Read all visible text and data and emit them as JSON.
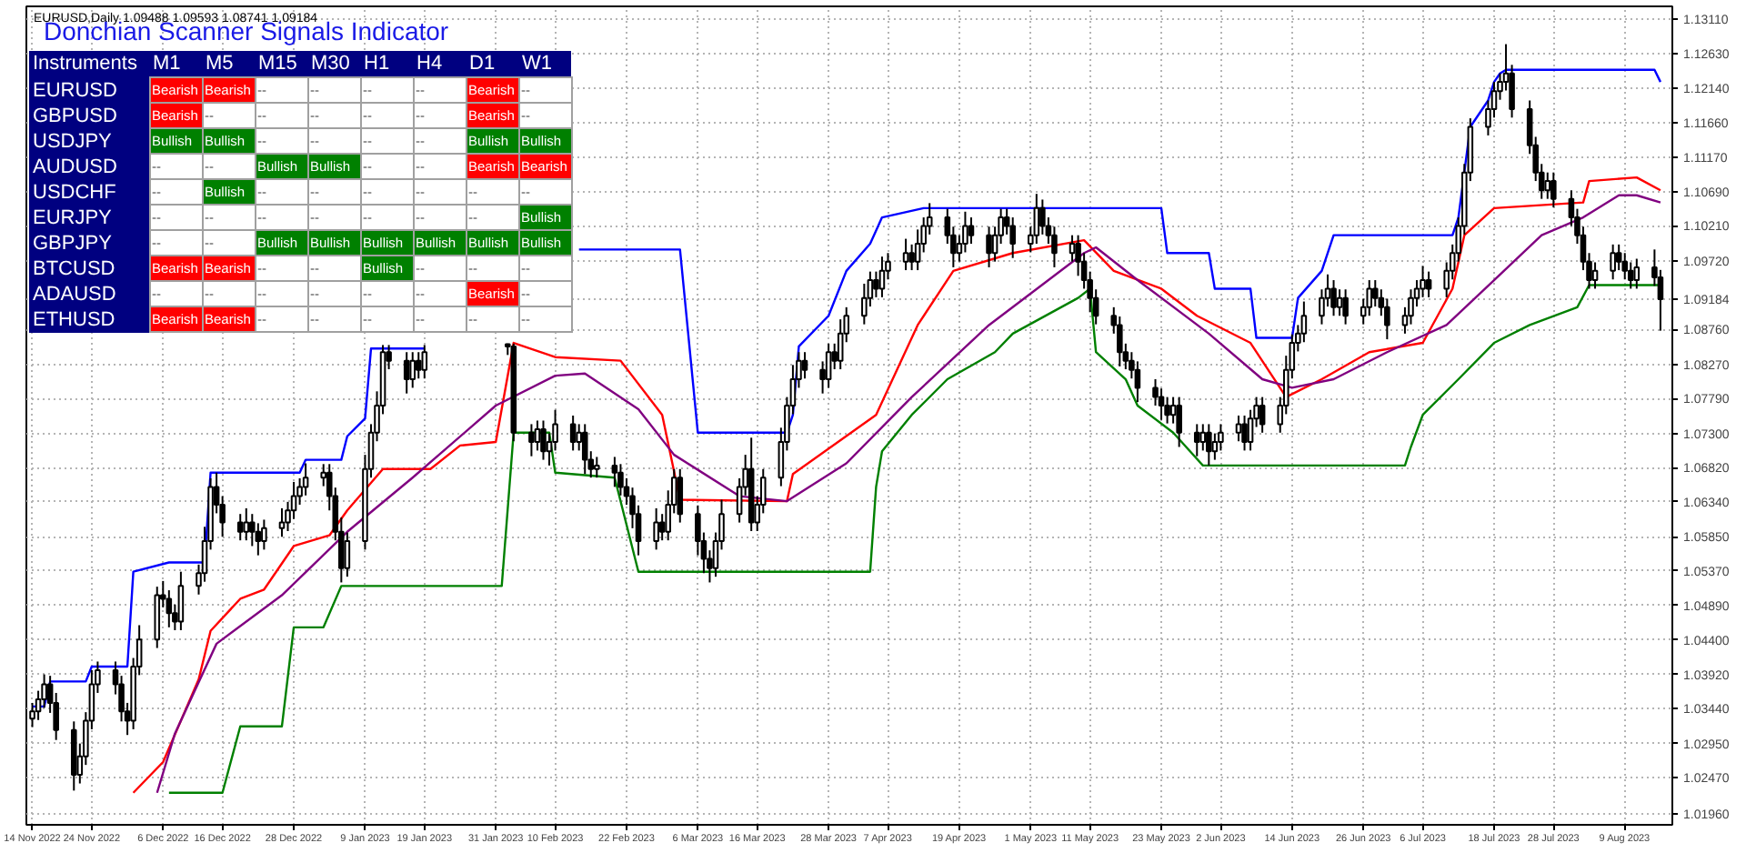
{
  "chart_data": [
    {
      "type": "candlestick",
      "annotations": [
        "EURUSD,Daily 1.09488 1.09593 1.08741 1.09184"
      ],
      "color": "#000000",
      "grid": true,
      "xlim": [
        "2022-11-13",
        "2023-08-17"
      ],
      "x": [
        "2022-11-14",
        "2022-11-15",
        "2022-11-16",
        "2022-11-17",
        "2022-11-18",
        "2022-11-21",
        "2022-11-22",
        "2022-11-23",
        "2022-11-24",
        "2022-11-25",
        "2022-11-28",
        "2022-11-29",
        "2022-11-30",
        "2022-12-01",
        "2022-12-02",
        "2022-12-05",
        "2022-12-06",
        "2022-12-07",
        "2022-12-08",
        "2022-12-09",
        "2022-12-12",
        "2022-12-13",
        "2022-12-14",
        "2022-12-15",
        "2022-12-16",
        "2022-12-19",
        "2022-12-20",
        "2022-12-21",
        "2022-12-22",
        "2022-12-23",
        "2022-12-26",
        "2022-12-27",
        "2022-12-28",
        "2022-12-29",
        "2022-12-30",
        "2023-01-02",
        "2023-01-03",
        "2023-01-04",
        "2023-01-05",
        "2023-01-06",
        "2023-01-09",
        "2023-01-10",
        "2023-01-11",
        "2023-01-12",
        "2023-01-13",
        "2023-01-16",
        "2023-01-17",
        "2023-01-18",
        "2023-01-19",
        "2023-02-02",
        "2023-02-03",
        "2023-02-06",
        "2023-02-07",
        "2023-02-08",
        "2023-02-09",
        "2023-02-10",
        "2023-02-13",
        "2023-02-14",
        "2023-02-15",
        "2023-02-16",
        "2023-02-17",
        "2023-02-20",
        "2023-02-21",
        "2023-02-22",
        "2023-02-23",
        "2023-02-24",
        "2023-02-27",
        "2023-02-28",
        "2023-03-01",
        "2023-03-02",
        "2023-03-03",
        "2023-03-06",
        "2023-03-07",
        "2023-03-08",
        "2023-03-09",
        "2023-03-10",
        "2023-03-13",
        "2023-03-14",
        "2023-03-15",
        "2023-03-16",
        "2023-03-17",
        "2023-03-20",
        "2023-03-21",
        "2023-03-22",
        "2023-03-23",
        "2023-03-24",
        "2023-03-27",
        "2023-03-28",
        "2023-03-29",
        "2023-03-30",
        "2023-03-31",
        "2023-04-03",
        "2023-04-04",
        "2023-04-05",
        "2023-04-06",
        "2023-04-07",
        "2023-04-10",
        "2023-04-11",
        "2023-04-12",
        "2023-04-13",
        "2023-04-14",
        "2023-04-17",
        "2023-04-18",
        "2023-04-19",
        "2023-04-20",
        "2023-04-21",
        "2023-04-24",
        "2023-04-25",
        "2023-04-26",
        "2023-04-27",
        "2023-04-28",
        "2023-05-01",
        "2023-05-02",
        "2023-05-03",
        "2023-05-04",
        "2023-05-05",
        "2023-05-08",
        "2023-05-09",
        "2023-05-10",
        "2023-05-11",
        "2023-05-12",
        "2023-05-15",
        "2023-05-16",
        "2023-05-17",
        "2023-05-18",
        "2023-05-19",
        "2023-05-22",
        "2023-05-23",
        "2023-05-24",
        "2023-05-25",
        "2023-05-26",
        "2023-05-29",
        "2023-05-30",
        "2023-05-31",
        "2023-06-01",
        "2023-06-02",
        "2023-06-05",
        "2023-06-06",
        "2023-06-07",
        "2023-06-08",
        "2023-06-09",
        "2023-06-12",
        "2023-06-13",
        "2023-06-14",
        "2023-06-15",
        "2023-06-16",
        "2023-06-19",
        "2023-06-20",
        "2023-06-21",
        "2023-06-22",
        "2023-06-23",
        "2023-06-26",
        "2023-06-27",
        "2023-06-28",
        "2023-06-29",
        "2023-06-30",
        "2023-07-03",
        "2023-07-04",
        "2023-07-05",
        "2023-07-06",
        "2023-07-07",
        "2023-07-10",
        "2023-07-11",
        "2023-07-12",
        "2023-07-13",
        "2023-07-14",
        "2023-07-17",
        "2023-07-18",
        "2023-07-19",
        "2023-07-20",
        "2023-07-21",
        "2023-07-24",
        "2023-07-25",
        "2023-07-26",
        "2023-07-27",
        "2023-07-28",
        "2023-07-31",
        "2023-08-01",
        "2023-08-02",
        "2023-08-03",
        "2023-08-04",
        "2023-08-07",
        "2023-08-08",
        "2023-08-09",
        "2023-08-10",
        "2023-08-11",
        "2023-08-14",
        "2023-08-15"
      ],
      "ohlc": [
        [
          1.033,
          1.0352,
          1.0318,
          1.034
        ],
        [
          1.034,
          1.0369,
          1.0328,
          1.0357
        ],
        [
          1.0357,
          1.0392,
          1.0345,
          1.0378
        ],
        [
          1.0378,
          1.039,
          1.0338,
          1.0352
        ],
        [
          1.0352,
          1.0366,
          1.03,
          1.0314
        ],
        [
          1.0314,
          1.0326,
          1.0229,
          1.0251
        ],
        [
          1.0251,
          1.0295,
          1.0239,
          1.0277
        ],
        [
          1.0277,
          1.0339,
          1.0265,
          1.0327
        ],
        [
          1.0327,
          1.0398,
          1.0315,
          1.0378
        ],
        [
          1.0378,
          1.041,
          1.0366,
          1.0398
        ],
        [
          1.0398,
          1.041,
          1.0364,
          1.0378
        ],
        [
          1.0378,
          1.039,
          1.0326,
          1.034
        ],
        [
          1.034,
          1.0352,
          1.0307,
          1.0327
        ],
        [
          1.0327,
          1.0415,
          1.0315,
          1.0403
        ],
        [
          1.0403,
          1.0461,
          1.0391,
          1.0441
        ],
        [
          1.0441,
          1.0515,
          1.0429,
          1.0503
        ],
        [
          1.0503,
          1.0523,
          1.0486,
          1.0498
        ],
        [
          1.0498,
          1.051,
          1.0458,
          1.0478
        ],
        [
          1.0478,
          1.049,
          1.0454,
          1.0466
        ],
        [
          1.0466,
          1.0536,
          1.0454,
          1.0516
        ],
        [
          1.0516,
          1.0546,
          1.0504,
          1.0534
        ],
        [
          1.0534,
          1.0599,
          1.0522,
          1.0579
        ],
        [
          1.0579,
          1.0667,
          1.0567,
          1.0655
        ],
        [
          1.0655,
          1.0675,
          1.0618,
          1.063
        ],
        [
          1.063,
          1.0642,
          1.0585,
          1.0605
        ],
        [
          1.0605,
          1.0617,
          1.058,
          1.0592
        ],
        [
          1.0592,
          1.0625,
          1.058,
          1.0605
        ],
        [
          1.0605,
          1.0617,
          1.0572,
          1.0592
        ],
        [
          1.0592,
          1.0604,
          1.0559,
          1.0579
        ],
        [
          1.0579,
          1.0609,
          1.0567,
          1.0597
        ],
        [
          1.0597,
          1.0625,
          1.0585,
          1.0605
        ],
        [
          1.0605,
          1.0634,
          1.0593,
          1.0622
        ],
        [
          1.0622,
          1.0662,
          1.061,
          1.0642
        ],
        [
          1.0642,
          1.0667,
          1.063,
          1.0655
        ],
        [
          1.0655,
          1.0688,
          1.0643,
          1.0668
        ],
        [
          1.0668,
          1.0687,
          1.0656,
          1.0675
        ],
        [
          1.0675,
          1.0687,
          1.0622,
          1.0642
        ],
        [
          1.0642,
          1.0654,
          1.058,
          1.0592
        ],
        [
          1.0592,
          1.0612,
          1.0521,
          1.0541
        ],
        [
          1.0541,
          1.0591,
          1.0529,
          1.0579
        ],
        [
          1.0579,
          1.07,
          1.0567,
          1.068
        ],
        [
          1.068,
          1.0743,
          1.0668,
          1.0731
        ],
        [
          1.0731,
          1.0789,
          1.0719,
          1.0769
        ],
        [
          1.0769,
          1.0854,
          1.0757,
          1.0844
        ],
        [
          1.0844,
          1.0854,
          1.082,
          1.0832
        ],
        [
          1.0832,
          1.0844,
          1.0786,
          1.0806
        ],
        [
          1.0806,
          1.0844,
          1.0794,
          1.0832
        ],
        [
          1.0832,
          1.0844,
          1.0807,
          1.0819
        ],
        [
          1.0819,
          1.0854,
          1.0807,
          1.0844
        ],
        [
          1.0855,
          1.0856,
          1.084,
          1.0852
        ],
        [
          1.0852,
          1.0856,
          1.0719,
          1.0731
        ],
        [
          1.0731,
          1.0743,
          1.0698,
          1.0718
        ],
        [
          1.0718,
          1.0748,
          1.0706,
          1.0736
        ],
        [
          1.0736,
          1.0748,
          1.0693,
          1.0705
        ],
        [
          1.0705,
          1.073,
          1.0685,
          1.0718
        ],
        [
          1.0718,
          1.0763,
          1.0706,
          1.0743
        ],
        [
          1.0743,
          1.0755,
          1.0706,
          1.0718
        ],
        [
          1.0718,
          1.0743,
          1.0706,
          1.0731
        ],
        [
          1.0731,
          1.0743,
          1.0673,
          1.0693
        ],
        [
          1.0693,
          1.0705,
          1.0668,
          1.068
        ],
        [
          1.068,
          1.0697,
          1.0668,
          1.0685
        ],
        [
          1.0685,
          1.0697,
          1.0655,
          1.0675
        ],
        [
          1.0675,
          1.0687,
          1.0643,
          1.0655
        ],
        [
          1.0655,
          1.0667,
          1.063,
          1.0642
        ],
        [
          1.0642,
          1.0654,
          1.0597,
          1.0617
        ],
        [
          1.0617,
          1.0629,
          1.0559,
          1.0579
        ],
        [
          1.0579,
          1.0625,
          1.0567,
          1.0605
        ],
        [
          1.0605,
          1.0617,
          1.058,
          1.0592
        ],
        [
          1.0592,
          1.065,
          1.058,
          1.063
        ],
        [
          1.063,
          1.068,
          1.0618,
          1.0668
        ],
        [
          1.0668,
          1.068,
          1.0605,
          1.0617
        ],
        [
          1.0617,
          1.0629,
          1.0559,
          1.0579
        ],
        [
          1.0579,
          1.0591,
          1.0534,
          1.0554
        ],
        [
          1.0554,
          1.0566,
          1.0521,
          1.0541
        ],
        [
          1.0541,
          1.0591,
          1.0529,
          1.0579
        ],
        [
          1.0579,
          1.0637,
          1.0567,
          1.0617
        ],
        [
          1.0617,
          1.0667,
          1.0605,
          1.0655
        ],
        [
          1.0655,
          1.07,
          1.0643,
          1.068
        ],
        [
          1.068,
          1.0724,
          1.0593,
          1.0605
        ],
        [
          1.0605,
          1.0642,
          1.0593,
          1.063
        ],
        [
          1.063,
          1.068,
          1.0618,
          1.0668
        ],
        [
          1.0668,
          1.0738,
          1.0656,
          1.0718
        ],
        [
          1.0718,
          1.0781,
          1.0706,
          1.0769
        ],
        [
          1.0769,
          1.0826,
          1.0757,
          1.0806
        ],
        [
          1.0806,
          1.0844,
          1.0794,
          1.0832
        ],
        [
          1.0832,
          1.0844,
          1.0807,
          1.0819
        ],
        [
          1.0819,
          1.0831,
          1.0786,
          1.0806
        ],
        [
          1.0806,
          1.0856,
          1.0794,
          1.0844
        ],
        [
          1.0844,
          1.0856,
          1.082,
          1.0832
        ],
        [
          1.0832,
          1.089,
          1.082,
          1.087
        ],
        [
          1.087,
          1.0907,
          1.0858,
          1.0895
        ],
        [
          1.0895,
          1.094,
          1.0883,
          1.092
        ],
        [
          1.092,
          1.0957,
          1.0908,
          1.0945
        ],
        [
          1.0945,
          1.0957,
          1.0921,
          1.0933
        ],
        [
          1.0933,
          1.0978,
          1.0921,
          1.0958
        ],
        [
          1.0958,
          1.0983,
          1.0946,
          1.0971
        ],
        [
          1.0971,
          1.1003,
          1.0959,
          1.0983
        ],
        [
          1.0983,
          1.0995,
          1.0959,
          1.0971
        ],
        [
          1.0971,
          1.1016,
          1.0959,
          1.0996
        ],
        [
          1.0996,
          1.1033,
          1.0984,
          1.1021
        ],
        [
          1.1021,
          1.1053,
          1.1009,
          1.1033
        ],
        [
          1.1033,
          1.1045,
          1.0996,
          1.1008
        ],
        [
          1.1008,
          1.102,
          1.0963,
          1.0983
        ],
        [
          1.0983,
          1.1008,
          1.0971,
          1.0996
        ],
        [
          1.0996,
          1.1041,
          1.0984,
          1.1021
        ],
        [
          1.1021,
          1.1033,
          1.0996,
          1.1008
        ],
        [
          1.1008,
          1.102,
          1.0963,
          1.0983
        ],
        [
          1.0983,
          1.102,
          1.0971,
          1.1008
        ],
        [
          1.1008,
          1.1045,
          1.0996,
          1.1033
        ],
        [
          1.1033,
          1.1045,
          1.1009,
          1.1021
        ],
        [
          1.1021,
          1.1033,
          1.0976,
          1.0996
        ],
        [
          1.0996,
          1.102,
          1.0984,
          1.1008
        ],
        [
          1.1008,
          1.1066,
          1.0996,
          1.1046
        ],
        [
          1.1046,
          1.1058,
          1.1009,
          1.1021
        ],
        [
          1.1021,
          1.1033,
          1.0996,
          1.1008
        ],
        [
          1.1008,
          1.102,
          1.0963,
          1.0983
        ],
        [
          1.0983,
          1.1008,
          1.0971,
          1.0996
        ],
        [
          1.0996,
          1.1008,
          1.0951,
          1.0971
        ],
        [
          1.0971,
          1.0983,
          1.0933,
          1.0945
        ],
        [
          1.0945,
          1.0957,
          1.09,
          1.092
        ],
        [
          1.092,
          1.0932,
          1.0883,
          1.0895
        ],
        [
          1.0895,
          1.0907,
          1.087,
          1.0882
        ],
        [
          1.0882,
          1.0894,
          1.0824,
          1.0844
        ],
        [
          1.0844,
          1.0856,
          1.082,
          1.0832
        ],
        [
          1.0832,
          1.0844,
          1.0807,
          1.0819
        ],
        [
          1.0819,
          1.0831,
          1.0774,
          1.0794
        ],
        [
          1.0794,
          1.0806,
          1.0769,
          1.0781
        ],
        [
          1.0781,
          1.0793,
          1.0749,
          1.0769
        ],
        [
          1.0769,
          1.0781,
          1.0744,
          1.0756
        ],
        [
          1.0756,
          1.0781,
          1.0744,
          1.0769
        ],
        [
          1.0769,
          1.0781,
          1.0711,
          1.0731
        ],
        [
          1.0731,
          1.0743,
          1.0698,
          1.0718
        ],
        [
          1.0718,
          1.0743,
          1.0706,
          1.0731
        ],
        [
          1.0731,
          1.0743,
          1.0685,
          1.0705
        ],
        [
          1.0705,
          1.073,
          1.0693,
          1.0718
        ],
        [
          1.0718,
          1.0743,
          1.0706,
          1.0731
        ],
        [
          1.0731,
          1.0755,
          1.0719,
          1.0743
        ],
        [
          1.0743,
          1.0755,
          1.0706,
          1.0718
        ],
        [
          1.0718,
          1.0763,
          1.0706,
          1.0751
        ],
        [
          1.0751,
          1.0781,
          1.0739,
          1.0769
        ],
        [
          1.0769,
          1.0781,
          1.0731,
          1.0743
        ],
        [
          1.0743,
          1.0781,
          1.0731,
          1.0769
        ],
        [
          1.0769,
          1.0839,
          1.0757,
          1.0819
        ],
        [
          1.0819,
          1.0869,
          1.0807,
          1.0857
        ],
        [
          1.0857,
          1.0882,
          1.0845,
          1.087
        ],
        [
          1.087,
          1.0915,
          1.0858,
          1.0895
        ],
        [
          1.0895,
          1.0932,
          1.0883,
          1.092
        ],
        [
          1.092,
          1.0953,
          1.0908,
          1.0933
        ],
        [
          1.0933,
          1.0945,
          1.0895,
          1.0907
        ],
        [
          1.0907,
          1.0932,
          1.0895,
          1.092
        ],
        [
          1.092,
          1.0932,
          1.0883,
          1.0895
        ],
        [
          1.0895,
          1.0919,
          1.0883,
          1.0907
        ],
        [
          1.0907,
          1.0945,
          1.0895,
          1.0933
        ],
        [
          1.0933,
          1.0945,
          1.0908,
          1.092
        ],
        [
          1.092,
          1.0932,
          1.0895,
          1.0907
        ],
        [
          1.0907,
          1.0919,
          1.0862,
          1.0882
        ],
        [
          1.0882,
          1.0907,
          1.087,
          1.0895
        ],
        [
          1.0895,
          1.0932,
          1.0883,
          1.092
        ],
        [
          1.092,
          1.0945,
          1.0908,
          1.0933
        ],
        [
          1.0933,
          1.0965,
          1.0921,
          1.0945
        ],
        [
          1.0945,
          1.0957,
          1.0921,
          1.0933
        ],
        [
          1.0933,
          1.097,
          1.0921,
          1.0958
        ],
        [
          1.0958,
          1.0995,
          1.0946,
          1.0983
        ],
        [
          1.0983,
          1.1033,
          1.0971,
          1.1021
        ],
        [
          1.1021,
          1.1108,
          1.1009,
          1.1096
        ],
        [
          1.1096,
          1.1172,
          1.1084,
          1.116
        ],
        [
          1.116,
          1.1197,
          1.1148,
          1.1185
        ],
        [
          1.1185,
          1.1223,
          1.1173,
          1.121
        ],
        [
          1.121,
          1.1235,
          1.1198,
          1.1223
        ],
        [
          1.1223,
          1.1276,
          1.1211,
          1.1235
        ],
        [
          1.1235,
          1.1247,
          1.1173,
          1.1185
        ],
        [
          1.1185,
          1.1197,
          1.1122,
          1.1134
        ],
        [
          1.1134,
          1.1146,
          1.1084,
          1.1096
        ],
        [
          1.1096,
          1.1108,
          1.1059,
          1.1071
        ],
        [
          1.1071,
          1.1096,
          1.1059,
          1.1084
        ],
        [
          1.1084,
          1.1096,
          1.1047,
          1.1059
        ],
        [
          1.1059,
          1.1071,
          1.1021,
          1.1033
        ],
        [
          1.1033,
          1.1045,
          1.0996,
          1.1008
        ],
        [
          1.1008,
          1.102,
          1.0959,
          1.0971
        ],
        [
          1.0971,
          1.0983,
          1.0933,
          1.0945
        ],
        [
          1.0945,
          1.097,
          1.0933,
          1.0958
        ],
        [
          1.0958,
          1.0995,
          1.0946,
          1.0983
        ],
        [
          1.0983,
          1.0995,
          1.0959,
          1.0971
        ],
        [
          1.0971,
          1.0983,
          1.0946,
          1.0958
        ],
        [
          1.0958,
          1.097,
          1.0933,
          1.0945
        ],
        [
          1.0945,
          1.0975,
          1.0933,
          1.0963
        ],
        [
          1.0963,
          1.0988,
          1.0937,
          1.0949
        ],
        [
          1.09488,
          1.09593,
          1.08741,
          1.09184
        ]
      ],
      "series": [
        {
          "type": "line",
          "color": "#0000ff",
          "x": [
            "2022-11-14",
            "2022-11-16",
            "2022-11-17",
            "2022-11-23",
            "2022-11-24",
            "2022-11-30",
            "2022-12-01",
            "2022-12-07",
            "2022-12-13",
            "2022-12-14",
            "2022-12-29",
            "2022-12-30",
            "2023-01-05",
            "2023-01-06",
            "2023-01-09",
            "2023-01-10",
            "2023-01-19",
            "2023-01-25",
            "2023-02-14",
            "2023-03-03",
            "2023-03-06",
            "2023-03-21",
            "2023-03-22",
            "2023-03-23",
            "2023-03-28",
            "2023-03-31",
            "2023-04-04",
            "2023-04-06",
            "2023-04-13",
            "2023-05-23",
            "2023-05-24",
            "2023-05-31",
            "2023-06-01",
            "2023-06-07",
            "2023-06-08",
            "2023-06-14",
            "2023-06-15",
            "2023-06-19",
            "2023-06-21",
            "2023-07-11",
            "2023-07-12",
            "2023-07-13",
            "2023-07-14",
            "2023-07-17",
            "2023-07-18",
            "2023-07-19",
            "2023-07-20",
            "2023-08-14",
            "2023-08-15"
          ],
          "values": [
            1.0347,
            1.0347,
            1.0382,
            1.0382,
            1.0403,
            1.0403,
            1.0536,
            1.0549,
            1.0549,
            1.0675,
            1.0675,
            1.0693,
            1.0693,
            1.0726,
            1.0751,
            1.0849,
            1.0849,
            null,
            1.0988,
            1.0988,
            1.0731,
            1.0731,
            1.0756,
            1.0852,
            1.0895,
            1.0958,
            1.0996,
            1.1033,
            1.1046,
            1.1046,
            1.0983,
            1.0983,
            1.0933,
            1.0933,
            1.0864,
            1.0864,
            1.092,
            1.0958,
            1.1008,
            1.1008,
            1.1033,
            1.1097,
            1.116,
            1.1197,
            1.1223,
            1.1235,
            1.124,
            1.124,
            1.1223
          ]
        },
        {
          "type": "line",
          "color": "#008000",
          "x": [
            "2022-12-07",
            "2022-12-16",
            "2022-12-19",
            "2022-12-26",
            "2022-12-28",
            "2023-01-02",
            "2023-01-05",
            "2023-02-01",
            "2023-02-03",
            "2023-02-09",
            "2023-02-10",
            "2023-02-20",
            "2023-02-24",
            "2023-04-04",
            "2023-04-05",
            "2023-04-06",
            "2023-04-11",
            "2023-04-17",
            "2023-04-25",
            "2023-04-28",
            "2023-05-09",
            "2023-05-11",
            "2023-05-12",
            "2023-05-17",
            "2023-05-19",
            "2023-05-25",
            "2023-05-30",
            "2023-07-03",
            "2023-07-04",
            "2023-07-06",
            "2023-07-12",
            "2023-07-18",
            "2023-07-24",
            "2023-08-01",
            "2023-08-03",
            "2023-08-15"
          ],
          "values": [
            1.0226,
            1.0226,
            1.0319,
            1.0319,
            1.0458,
            1.0458,
            1.0516,
            1.0516,
            1.0731,
            1.0731,
            1.0675,
            1.0668,
            1.0536,
            1.0536,
            1.0655,
            1.0705,
            1.0756,
            1.0806,
            1.0844,
            1.087,
            1.092,
            1.0933,
            1.0844,
            1.0806,
            1.0769,
            1.0731,
            1.0685,
            1.0685,
            1.0711,
            1.0756,
            1.0806,
            1.0857,
            1.0882,
            1.0907,
            1.0938,
            1.0938
          ]
        },
        {
          "type": "line",
          "color": "#ff0000",
          "x": [
            "2022-12-01",
            "2022-12-06",
            "2022-12-12",
            "2022-12-14",
            "2022-12-19",
            "2022-12-23",
            "2022-12-28",
            "2023-01-03",
            "2023-01-06",
            "2023-01-12",
            "2023-01-20",
            "2023-01-25",
            "2023-01-31",
            "2023-02-03",
            "2023-02-10",
            "2023-02-21",
            "2023-02-28",
            "2023-03-03",
            "2023-03-21",
            "2023-03-22",
            "2023-04-05",
            "2023-04-12",
            "2023-04-18",
            "2023-04-28",
            "2023-05-10",
            "2023-05-15",
            "2023-05-23",
            "2023-05-29",
            "2023-06-07",
            "2023-06-13",
            "2023-06-19",
            "2023-06-27",
            "2023-07-06",
            "2023-07-11",
            "2023-07-13",
            "2023-07-18",
            "2023-08-02",
            "2023-08-03",
            "2023-08-11",
            "2023-08-15"
          ],
          "values": [
            1.0226,
            1.0269,
            1.0385,
            1.0453,
            1.0498,
            1.0511,
            1.0572,
            1.0587,
            1.0622,
            1.068,
            1.068,
            1.0713,
            1.0718,
            1.0857,
            1.0837,
            1.0832,
            1.0756,
            1.0637,
            1.0635,
            1.0673,
            1.0756,
            1.0882,
            1.0958,
            1.0983,
            1.1001,
            1.0958,
            1.0933,
            1.0895,
            1.0857,
            1.0781,
            1.0806,
            1.0844,
            1.0857,
            1.0933,
            1.1008,
            1.1046,
            1.1054,
            1.1084,
            1.1089,
            1.1071
          ]
        },
        {
          "type": "line",
          "color": "#800080",
          "x": [
            "2022-12-05",
            "2022-12-08",
            "2022-12-15",
            "2022-12-26",
            "2023-01-06",
            "2023-01-17",
            "2023-01-31",
            "2023-02-10",
            "2023-02-15",
            "2023-02-24",
            "2023-03-02",
            "2023-03-13",
            "2023-03-21",
            "2023-03-31",
            "2023-04-11",
            "2023-04-24",
            "2023-05-04",
            "2023-05-10",
            "2023-05-12",
            "2023-05-19",
            "2023-05-31",
            "2023-06-09",
            "2023-06-14",
            "2023-06-21",
            "2023-06-30",
            "2023-07-10",
            "2023-07-18",
            "2023-07-26",
            "2023-08-02",
            "2023-08-08",
            "2023-08-11",
            "2023-08-15"
          ],
          "values": [
            1.0226,
            1.0309,
            1.0435,
            1.0503,
            1.0592,
            1.0668,
            1.0769,
            1.0811,
            1.0814,
            1.0764,
            1.07,
            1.0642,
            1.0635,
            1.0688,
            1.0781,
            1.0882,
            1.0945,
            1.0983,
            1.0991,
            1.0945,
            1.087,
            1.0806,
            1.0794,
            1.0806,
            1.0844,
            1.0882,
            1.0945,
            1.1008,
            1.1033,
            1.1064,
            1.1064,
            1.1054
          ]
        }
      ],
      "ylim": [
        1.0181,
        1.1329
      ],
      "yticks": [
        {
          "value": 1.1311,
          "label": "1.13110"
        },
        {
          "value": 1.1263,
          "label": "1.12630"
        },
        {
          "value": 1.1214,
          "label": "1.12140"
        },
        {
          "value": 1.1166,
          "label": "1.11660"
        },
        {
          "value": 1.1117,
          "label": "1.11170"
        },
        {
          "value": 1.1069,
          "label": "1.10690"
        },
        {
          "value": 1.1021,
          "label": "1.10210"
        },
        {
          "value": 1.0972,
          "label": "1.09720"
        },
        {
          "value": 1.09184,
          "label": "1.09184"
        },
        {
          "value": 1.0876,
          "label": "1.08760"
        },
        {
          "value": 1.0827,
          "label": "1.08270"
        },
        {
          "value": 1.0779,
          "label": "1.07790"
        },
        {
          "value": 1.073,
          "label": "1.07300"
        },
        {
          "value": 1.0682,
          "label": "1.06820"
        },
        {
          "value": 1.0634,
          "label": "1.06340"
        },
        {
          "value": 1.0585,
          "label": "1.05850"
        },
        {
          "value": 1.0537,
          "label": "1.05370"
        },
        {
          "value": 1.0489,
          "label": "1.04890"
        },
        {
          "value": 1.044,
          "label": "1.04400"
        },
        {
          "value": 1.0392,
          "label": "1.03920"
        },
        {
          "value": 1.0344,
          "label": "1.03440"
        },
        {
          "value": 1.0295,
          "label": "1.02950"
        },
        {
          "value": 1.0247,
          "label": "1.02470"
        },
        {
          "value": 1.0196,
          "label": "1.01960"
        }
      ],
      "xticks": [
        {
          "value": "2022-11-14",
          "label": "14 Nov 2022"
        },
        {
          "value": "2022-11-24",
          "label": "24 Nov 2022"
        },
        {
          "value": "2022-12-06",
          "label": "6 Dec 2022"
        },
        {
          "value": "2022-12-16",
          "label": "16 Dec 2022"
        },
        {
          "value": "2022-12-28",
          "label": "28 Dec 2022"
        },
        {
          "value": "2023-01-09",
          "label": "9 Jan 2023"
        },
        {
          "value": "2023-01-19",
          "label": "19 Jan 2023"
        },
        {
          "value": "2023-01-31",
          "label": "31 Jan 2023"
        },
        {
          "value": "2023-02-10",
          "label": "10 Feb 2023"
        },
        {
          "value": "2023-02-22",
          "label": "22 Feb 2023"
        },
        {
          "value": "2023-03-06",
          "label": "6 Mar 2023"
        },
        {
          "value": "2023-03-16",
          "label": "16 Mar 2023"
        },
        {
          "value": "2023-03-28",
          "label": "28 Mar 2023"
        },
        {
          "value": "2023-04-07",
          "label": "7 Apr 2023"
        },
        {
          "value": "2023-04-19",
          "label": "19 Apr 2023"
        },
        {
          "value": "2023-05-01",
          "label": "1 May 2023"
        },
        {
          "value": "2023-05-11",
          "label": "11 May 2023"
        },
        {
          "value": "2023-05-23",
          "label": "23 May 2023"
        },
        {
          "value": "2023-06-02",
          "label": "2 Jun 2023"
        },
        {
          "value": "2023-06-14",
          "label": "14 Jun 2023"
        },
        {
          "value": "2023-06-26",
          "label": "26 Jun 2023"
        },
        {
          "value": "2023-07-06",
          "label": "6 Jul 2023"
        },
        {
          "value": "2023-07-18",
          "label": "18 Jul 2023"
        },
        {
          "value": "2023-07-28",
          "label": "28 Jul 2023"
        },
        {
          "value": "2023-08-09",
          "label": "9 Aug 2023"
        }
      ]
    },
    {
      "type": "other",
      "title": "Donchian Scanner Signals Indicator",
      "ylabel": "Instruments",
      "categories": [
        "M1",
        "M5",
        "M15",
        "M30",
        "H1",
        "H4",
        "D1",
        "W1"
      ],
      "y_categories": [
        "EURUSD",
        "GBPUSD",
        "USDJPY",
        "AUDUSD",
        "USDCHF",
        "EURJPY",
        "GBPJPY",
        "BTCUSD",
        "ADAUSD",
        "ETHUSD"
      ],
      "colors": [
        [
          "#ff0000",
          "#ff0000",
          "#ffffff",
          "#ffffff",
          "#ffffff",
          "#ffffff",
          "#ff0000",
          "#ffffff"
        ],
        [
          "#ff0000",
          "#ffffff",
          "#ffffff",
          "#ffffff",
          "#ffffff",
          "#ffffff",
          "#ff0000",
          "#ffffff"
        ],
        [
          "#008000",
          "#008000",
          "#ffffff",
          "#ffffff",
          "#ffffff",
          "#ffffff",
          "#008000",
          "#008000"
        ],
        [
          "#ffffff",
          "#ffffff",
          "#008000",
          "#008000",
          "#ffffff",
          "#ffffff",
          "#ff0000",
          "#ff0000"
        ],
        [
          "#ffffff",
          "#008000",
          "#ffffff",
          "#ffffff",
          "#ffffff",
          "#ffffff",
          "#ffffff",
          "#ffffff"
        ],
        [
          "#ffffff",
          "#ffffff",
          "#ffffff",
          "#ffffff",
          "#ffffff",
          "#ffffff",
          "#ffffff",
          "#008000"
        ],
        [
          "#ffffff",
          "#ffffff",
          "#008000",
          "#008000",
          "#008000",
          "#008000",
          "#008000",
          "#008000"
        ],
        [
          "#ff0000",
          "#ff0000",
          "#ffffff",
          "#ffffff",
          "#008000",
          "#ffffff",
          "#ffffff",
          "#ffffff"
        ],
        [
          "#ffffff",
          "#ffffff",
          "#ffffff",
          "#ffffff",
          "#ffffff",
          "#ffffff",
          "#ff0000",
          "#ffffff"
        ],
        [
          "#ff0000",
          "#ff0000",
          "#ffffff",
          "#ffffff",
          "#ffffff",
          "#ffffff",
          "#ffffff",
          "#ffffff"
        ]
      ],
      "cell_labels": [
        [
          "Bearish",
          "Bearish",
          "--",
          "--",
          "--",
          "--",
          "Bearish",
          "--"
        ],
        [
          "Bearish",
          "--",
          "--",
          "--",
          "--",
          "--",
          "Bearish",
          "--"
        ],
        [
          "Bullish",
          "Bullish",
          "--",
          "--",
          "--",
          "--",
          "Bullish",
          "Bullish"
        ],
        [
          "--",
          "--",
          "Bullish",
          "Bullish",
          "--",
          "--",
          "Bearish",
          "Bearish"
        ],
        [
          "--",
          "Bullish",
          "--",
          "--",
          "--",
          "--",
          "--",
          "--"
        ],
        [
          "--",
          "--",
          "--",
          "--",
          "--",
          "--",
          "--",
          "Bullish"
        ],
        [
          "--",
          "--",
          "Bullish",
          "Bullish",
          "Bullish",
          "Bullish",
          "Bullish",
          "Bullish"
        ],
        [
          "Bearish",
          "Bearish",
          "--",
          "--",
          "Bullish",
          "--",
          "--",
          "--"
        ],
        [
          "--",
          "--",
          "--",
          "--",
          "--",
          "--",
          "Bearish",
          "--"
        ],
        [
          "Bearish",
          "Bearish",
          "--",
          "--",
          "--",
          "--",
          "--",
          "--"
        ]
      ]
    }
  ]
}
